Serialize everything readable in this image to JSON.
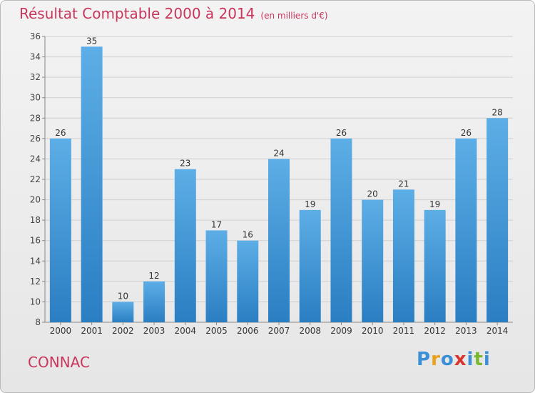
{
  "header": {
    "title": "Résultat Comptable 2000 à 2014",
    "unit": "(en milliers d'€)"
  },
  "footer": {
    "place": "CONNAC",
    "logo": {
      "letters": [
        "P",
        "r",
        "o",
        "x",
        "i",
        "t",
        "i"
      ],
      "colors": [
        "#3a8fd6",
        "#e9a21b",
        "#3a8fd6",
        "#d8362c",
        "#3a8fd6",
        "#7cb82f",
        "#3a8fd6"
      ]
    }
  },
  "colors": {
    "bar_light": "#5daee6",
    "bar_dark": "#2a7ec2",
    "title": "#c8365c",
    "grid": "#cfcfcf"
  },
  "chart_data": {
    "type": "bar",
    "categories": [
      "2000",
      "2001",
      "2002",
      "2003",
      "2004",
      "2005",
      "2006",
      "2007",
      "2008",
      "2009",
      "2010",
      "2011",
      "2012",
      "2013",
      "2014"
    ],
    "values": [
      26,
      35,
      10,
      12,
      23,
      17,
      16,
      24,
      19,
      26,
      20,
      21,
      19,
      26,
      28
    ],
    "ylim": [
      8,
      36
    ],
    "yticks": [
      8,
      10,
      12,
      14,
      16,
      18,
      20,
      22,
      24,
      26,
      28,
      30,
      32,
      34,
      36
    ],
    "grid": true,
    "legend": "none"
  }
}
